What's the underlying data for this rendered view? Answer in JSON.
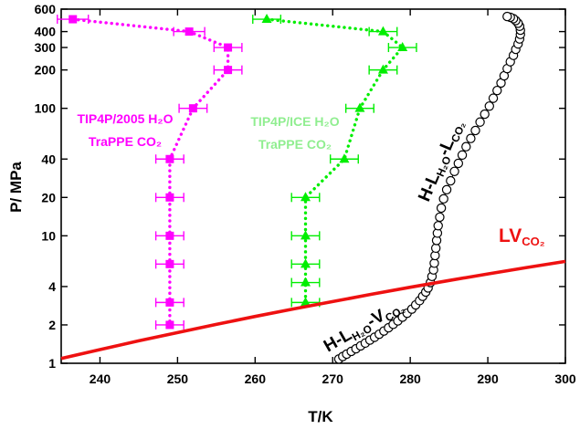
{
  "chart_data": {
    "type": "scatter",
    "xlabel": "T/K",
    "ylabel": "P/ MPa",
    "xlim": [
      235,
      300
    ],
    "ylim": [
      1,
      600
    ],
    "yscale": "log",
    "xticks": [
      240,
      250,
      260,
      270,
      280,
      290,
      300
    ],
    "yticks": [
      1,
      2,
      4,
      10,
      20,
      40,
      100,
      200,
      300,
      400,
      600
    ],
    "grid": false,
    "legend": "none",
    "series": [
      {
        "name": "TIP4P/2005 H2O / TraPPE CO2",
        "label_lines": [
          "TIP4P/2005 H₂O",
          "TraPPE CO₂"
        ],
        "color": "#ff00ff",
        "marker": "square",
        "style": "dotted",
        "x": [
          236.5,
          251.5,
          256.5,
          256.5,
          252,
          249,
          249,
          249,
          249,
          249,
          249
        ],
        "y": [
          500,
          400,
          300,
          200,
          100,
          40,
          20,
          10,
          6,
          3,
          2
        ],
        "xerr": [
          2,
          2,
          1.8,
          1.8,
          1.8,
          1.8,
          1.8,
          1.8,
          1.8,
          1.8,
          1.8
        ]
      },
      {
        "name": "TIP4P/ICE H2O / TraPPE CO2",
        "label_lines": [
          "TIP4P/ICE H₂O",
          "TraPPE CO₂"
        ],
        "color": "#00ee00",
        "label_color": "#90ee90",
        "marker": "triangle",
        "style": "dotted",
        "x": [
          261.5,
          276.5,
          279,
          276.5,
          273.5,
          271.5,
          266.5,
          266.5,
          266.5,
          266.5,
          266.5
        ],
        "y": [
          500,
          400,
          300,
          200,
          100,
          40,
          20,
          10,
          6,
          4.3,
          3
        ],
        "xerr": [
          1.8,
          1.8,
          1.8,
          1.8,
          1.8,
          1.8,
          1.8,
          1.8,
          1.8,
          1.8,
          1.8
        ]
      },
      {
        "name": "H-L_H2O-L_CO2 / H-L_H2O-V_CO2",
        "color": "#000000",
        "marker": "open-circle",
        "style": "solid",
        "x": [
          270.8,
          271.3,
          271.8,
          272.4,
          273,
          273.6,
          274.2,
          274.8,
          275.4,
          276,
          276.6,
          277.2,
          277.8,
          278.4,
          279,
          279.6,
          280.2,
          280.7,
          281.2,
          281.6,
          282,
          282.3,
          282.6,
          282.8,
          283,
          283.1,
          283.2,
          283.3,
          283.4,
          283.5,
          283.6,
          283.8,
          284,
          284.3,
          284.7,
          285.2,
          285.7,
          286.2,
          286.7,
          287.2,
          287.8,
          288.4,
          289,
          289.6,
          290.2,
          290.7,
          291.2,
          291.7,
          292.1,
          292.5,
          292.9,
          293.3,
          293.6,
          293.9,
          294.1,
          294.2,
          294.2,
          294.1,
          293.9,
          293.6,
          293.3,
          292.9,
          292.5
        ],
        "y": [
          1.08,
          1.13,
          1.18,
          1.24,
          1.3,
          1.37,
          1.44,
          1.52,
          1.6,
          1.69,
          1.79,
          1.9,
          2.02,
          2.15,
          2.3,
          2.47,
          2.66,
          2.87,
          3.1,
          3.35,
          3.62,
          3.9,
          4.3,
          4.8,
          5.4,
          6.1,
          7,
          8,
          9.2,
          10.5,
          12,
          14,
          16.5,
          19.5,
          23,
          27,
          32,
          37,
          43,
          50,
          58,
          67,
          78,
          90,
          104,
          120,
          138,
          158,
          180,
          205,
          232,
          260,
          290,
          320,
          350,
          380,
          410,
          440,
          465,
          488,
          505,
          518,
          525
        ]
      },
      {
        "name": "LV_CO2",
        "color": "#ee1111",
        "marker": "none",
        "style": "solid",
        "x": [
          235,
          240,
          245,
          250,
          255,
          260,
          265,
          270,
          275,
          280,
          285,
          290,
          295,
          300
        ],
        "y": [
          1.09,
          1.28,
          1.5,
          1.74,
          2.02,
          2.33,
          2.67,
          3.05,
          3.48,
          3.95,
          4.46,
          5.02,
          5.64,
          6.3
        ]
      }
    ],
    "annotations": [
      {
        "id": "hllco2",
        "text": "H-L",
        "sub1": "H₂O",
        "mid": "-L",
        "sub2": "CO₂",
        "color": "#000000"
      },
      {
        "id": "hlvco2",
        "text": "H-L",
        "sub1": "H₂O",
        "mid": "-V",
        "sub2": "CO₂",
        "color": "#000000"
      },
      {
        "id": "lvco2",
        "text": "LV",
        "sub1": "CO₂",
        "mid": "",
        "sub2": "",
        "color": "#ee1111"
      }
    ]
  }
}
